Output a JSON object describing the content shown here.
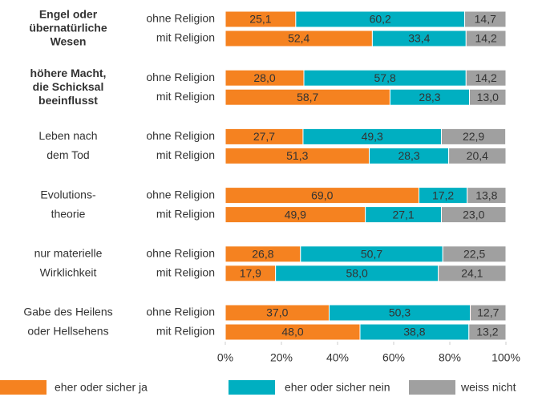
{
  "chart_data": {
    "type": "stacked_barh",
    "groups": [
      [
        "Engel oder",
        "übernatürliche",
        "Wesen"
      ],
      [
        "höhere Macht,",
        "die Schicksal",
        "beeinflusst"
      ],
      [
        "Leben nach",
        "dem Tod"
      ],
      [
        "Evolutions-",
        "theorie"
      ],
      [
        "nur materielle",
        "Wirklichkeit"
      ],
      [
        "Gabe des Heilens",
        "oder Hellsehens"
      ]
    ],
    "categories": [
      "ohne Religion",
      "mit Religion",
      "ohne Religion",
      "mit Religion",
      "ohne Religion",
      "mit Religion",
      "ohne Religion",
      "mit Religion",
      "ohne Religion",
      "mit Religion",
      "ohne Religion",
      "mit Religion"
    ],
    "series": [
      {
        "name": "eher oder sicher ja",
        "color": "#f58220",
        "values": [
          25.1,
          52.4,
          28.0,
          58.7,
          27.7,
          51.3,
          69.0,
          49.9,
          26.8,
          17.9,
          37.0,
          48.0
        ],
        "value_labels": [
          "25,1",
          "52,4",
          "28,0",
          "58,7",
          "27,7",
          "51,3",
          "69,0",
          "49,9",
          "26,8",
          "17,9",
          "37,0",
          "48,0"
        ]
      },
      {
        "name": "eher oder sicher nein",
        "color": "#00afc1",
        "values": [
          60.2,
          33.4,
          57.8,
          28.3,
          49.3,
          28.3,
          17.2,
          27.1,
          50.7,
          58.0,
          50.3,
          38.8
        ],
        "value_labels": [
          "60,2",
          "33,4",
          "57,8",
          "28,3",
          "49,3",
          "28,3",
          "17,2",
          "27,1",
          "50,7",
          "58,0",
          "50,3",
          "38,8"
        ]
      },
      {
        "name": "weiss nicht",
        "color": "#a0a0a0",
        "values": [
          14.7,
          14.2,
          14.2,
          13.0,
          22.9,
          20.4,
          13.8,
          23.0,
          22.5,
          24.1,
          12.7,
          13.2
        ],
        "value_labels": [
          "14,7",
          "14,2",
          "14,2",
          "13,0",
          "22,9",
          "20,4",
          "13,8",
          "23,0",
          "22,5",
          "24,1",
          "12,7",
          "13,2"
        ]
      }
    ],
    "xlim": [
      0,
      100
    ],
    "xticks": [
      {
        "value": 0,
        "label": "0%"
      },
      {
        "value": 20,
        "label": "20%"
      },
      {
        "value": 40,
        "label": "40%"
      },
      {
        "value": 60,
        "label": "60%"
      },
      {
        "value": 80,
        "label": "80%"
      },
      {
        "value": 100,
        "label": "100%"
      }
    ],
    "grid": false,
    "legend": "bottom"
  }
}
